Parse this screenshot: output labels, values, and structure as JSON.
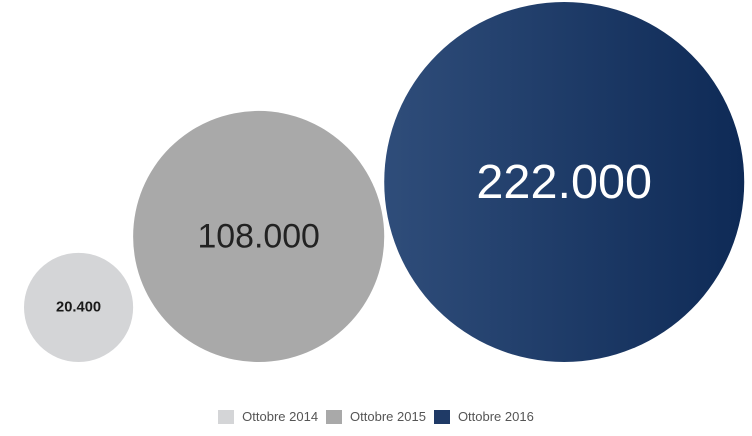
{
  "chart_data": {
    "type": "bubble",
    "title": "",
    "series": [
      {
        "name": "Ottobre 2014",
        "value": 20400,
        "label": "20.400",
        "color": "#d4d5d7",
        "text_color": "#1a1a1a"
      },
      {
        "name": "Ottobre 2015",
        "value": 108000,
        "label": "108.000",
        "color": "#a9a9a9",
        "text_color": "#222222"
      },
      {
        "name": "Ottobre 2016",
        "value": 222000,
        "label": "222.000",
        "color": "#1f3a66",
        "text_color": "#ffffff"
      }
    ],
    "legend": {
      "position": "bottom"
    }
  }
}
